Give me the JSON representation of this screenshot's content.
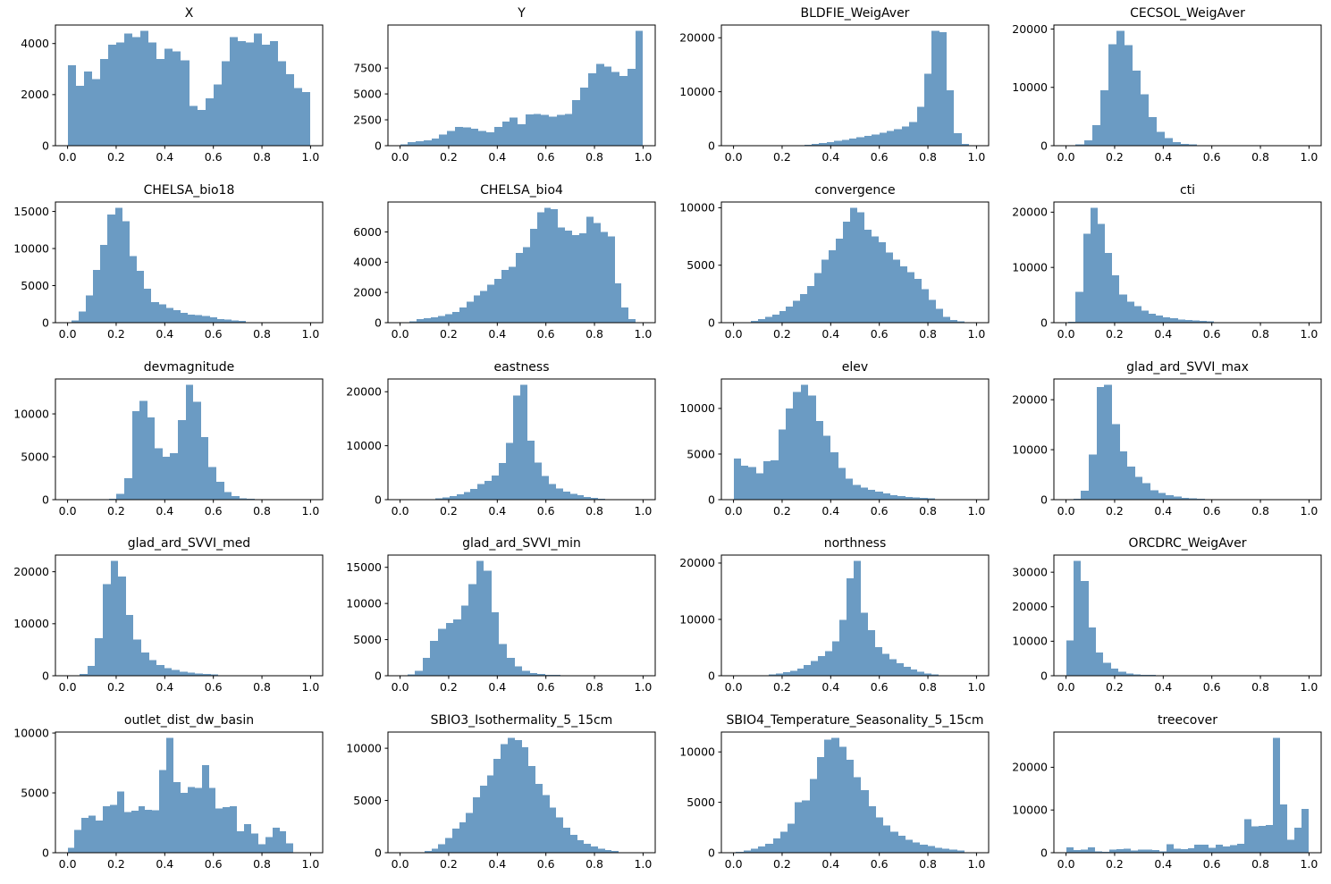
{
  "figure": {
    "rows": 5,
    "cols": 4,
    "background": "#ffffff",
    "bar_color": "#6b9bc3",
    "axis_color": "#000000",
    "text_color": "#000000",
    "grid": false,
    "legend": false,
    "xlim": [
      -0.05,
      1.05
    ],
    "xticks": [
      0.0,
      0.2,
      0.4,
      0.6,
      0.8,
      1.0
    ],
    "xtick_labels": [
      "0.0",
      "0.2",
      "0.4",
      "0.6",
      "0.8",
      "1.0"
    ]
  },
  "chart_data": [
    {
      "type": "bar",
      "subtype": "histogram",
      "title": "X",
      "xlabel": "",
      "ylabel": "",
      "x_range": [
        0.0,
        1.0
      ],
      "yticks": [
        0,
        2000,
        4000
      ],
      "values": [
        3150,
        2350,
        2900,
        2600,
        3400,
        3950,
        4050,
        4400,
        4250,
        4500,
        4050,
        3400,
        3800,
        3700,
        3350,
        1550,
        1400,
        1850,
        2400,
        3300,
        4250,
        4100,
        4050,
        4400,
        3950,
        4100,
        3300,
        2800,
        2250,
        2100
      ]
    },
    {
      "type": "bar",
      "subtype": "histogram",
      "title": "Y",
      "xlabel": "",
      "ylabel": "",
      "x_range": [
        0.0,
        1.0
      ],
      "yticks": [
        0,
        2500,
        5000,
        7500
      ],
      "values": [
        130,
        330,
        420,
        500,
        710,
        1080,
        1430,
        1800,
        1780,
        1660,
        1430,
        1290,
        1800,
        2350,
        2730,
        2070,
        3020,
        3080,
        2960,
        2790,
        2960,
        3080,
        4400,
        5590,
        6980,
        7880,
        7650,
        7130,
        6720,
        7410,
        11100
      ]
    },
    {
      "type": "bar",
      "subtype": "histogram",
      "title": "BLDFIE_WeigAver",
      "xlabel": "",
      "ylabel": "",
      "x_range": [
        0.26,
        0.97
      ],
      "yticks": [
        0,
        10000,
        20000
      ],
      "values": [
        100,
        200,
        350,
        500,
        700,
        900,
        1100,
        1300,
        1600,
        1800,
        2100,
        2400,
        2700,
        3100,
        3600,
        4400,
        7200,
        13300,
        21300,
        21000,
        10300,
        2300,
        300
      ]
    },
    {
      "type": "bar",
      "subtype": "histogram",
      "title": "CECSOL_WeigAver",
      "xlabel": "",
      "ylabel": "",
      "x_range": [
        0.04,
        0.54
      ],
      "yticks": [
        0,
        10000,
        20000
      ],
      "values": [
        200,
        900,
        3500,
        9500,
        17400,
        19700,
        17200,
        12900,
        8800,
        4900,
        2400,
        1300,
        600,
        300,
        200
      ]
    },
    {
      "type": "bar",
      "subtype": "histogram",
      "title": "CHELSA_bio18",
      "xlabel": "",
      "ylabel": "",
      "x_range": [
        0.015,
        0.735
      ],
      "yticks": [
        0,
        5000,
        10000,
        15000
      ],
      "values": [
        300,
        1500,
        3700,
        7100,
        10500,
        14600,
        15500,
        13700,
        9000,
        7000,
        4600,
        2800,
        2500,
        2000,
        1700,
        1300,
        1100,
        1000,
        900,
        700,
        500,
        400,
        300,
        250
      ]
    },
    {
      "type": "bar",
      "subtype": "histogram",
      "title": "CHELSA_bio4",
      "xlabel": "",
      "ylabel": "",
      "x_range": [
        0.04,
        0.97
      ],
      "yticks": [
        0,
        2000,
        4000,
        6000
      ],
      "values": [
        100,
        250,
        300,
        350,
        450,
        550,
        700,
        1000,
        1400,
        1800,
        2100,
        2500,
        2900,
        3500,
        3700,
        4600,
        5000,
        6200,
        7300,
        7600,
        7500,
        6300,
        6100,
        5800,
        5900,
        7000,
        6600,
        6000,
        5700,
        2600,
        1000,
        250
      ]
    },
    {
      "type": "bar",
      "subtype": "histogram",
      "title": "convergence",
      "xlabel": "",
      "ylabel": "",
      "x_range": [
        0.07,
        0.95
      ],
      "yticks": [
        0,
        5000,
        10000
      ],
      "values": [
        150,
        300,
        500,
        700,
        1000,
        1400,
        1900,
        2500,
        3200,
        4300,
        5500,
        6300,
        7300,
        8800,
        10000,
        9600,
        8100,
        7500,
        7000,
        6100,
        5500,
        4900,
        4400,
        3800,
        2900,
        2000,
        1200,
        500,
        250,
        100
      ]
    },
    {
      "type": "bar",
      "subtype": "histogram",
      "title": "cti",
      "xlabel": "",
      "ylabel": "",
      "x_range": [
        0.01,
        0.61
      ],
      "yticks": [
        0,
        10000,
        20000
      ],
      "values": [
        200,
        5600,
        16100,
        20800,
        17900,
        12600,
        8600,
        5100,
        3800,
        3000,
        2200,
        1600,
        1300,
        1000,
        800,
        600,
        500,
        400,
        300,
        250
      ]
    },
    {
      "type": "bar",
      "subtype": "histogram",
      "title": "devmagnitude",
      "xlabel": "",
      "ylabel": "",
      "x_range": [
        0.17,
        0.77
      ],
      "yticks": [
        0,
        5000,
        10000
      ],
      "values": [
        100,
        700,
        2500,
        10300,
        11500,
        9600,
        6000,
        5000,
        5400,
        9300,
        13400,
        11400,
        7300,
        3800,
        2100,
        900,
        400,
        150,
        100
      ]
    },
    {
      "type": "bar",
      "subtype": "histogram",
      "title": "eastness",
      "xlabel": "",
      "ylabel": "",
      "x_range": [
        0.115,
        0.845
      ],
      "yticks": [
        0,
        10000,
        20000
      ],
      "values": [
        100,
        250,
        450,
        700,
        1000,
        1400,
        2000,
        2900,
        3500,
        4500,
        6800,
        10500,
        19300,
        21300,
        10900,
        6900,
        4400,
        2900,
        2100,
        1500,
        1100,
        800,
        500,
        300,
        200
      ]
    },
    {
      "type": "bar",
      "subtype": "histogram",
      "title": "elev",
      "xlabel": "",
      "ylabel": "",
      "x_range": [
        0.0,
        0.83
      ],
      "yticks": [
        0,
        5000,
        10000
      ],
      "values": [
        4500,
        3700,
        3600,
        2900,
        4200,
        4300,
        7700,
        10000,
        11800,
        12600,
        11400,
        8600,
        7000,
        5200,
        3500,
        2300,
        1600,
        1300,
        1100,
        900,
        700,
        500,
        400,
        300,
        250,
        200,
        150
      ]
    },
    {
      "type": "bar",
      "subtype": "histogram",
      "title": "glad_ard_SVVI_max",
      "xlabel": "",
      "ylabel": "",
      "x_range": [
        0.03,
        0.57
      ],
      "yticks": [
        0,
        10000,
        20000
      ],
      "values": [
        200,
        1800,
        9000,
        22500,
        23000,
        15100,
        9700,
        6600,
        4600,
        3300,
        1900,
        1300,
        900,
        600,
        400,
        250,
        150
      ]
    },
    {
      "type": "bar",
      "subtype": "histogram",
      "title": "glad_ard_SVVI_med",
      "xlabel": "",
      "ylabel": "",
      "x_range": [
        0.05,
        0.62
      ],
      "yticks": [
        0,
        10000,
        20000
      ],
      "values": [
        300,
        1900,
        7200,
        17600,
        22100,
        19100,
        11700,
        7000,
        4500,
        3000,
        2100,
        1500,
        1100,
        800,
        600,
        450,
        350,
        250
      ]
    },
    {
      "type": "bar",
      "subtype": "histogram",
      "title": "glad_ard_SVVI_min",
      "xlabel": "",
      "ylabel": "",
      "x_range": [
        0.03,
        0.66
      ],
      "yticks": [
        0,
        5000,
        10000,
        15000
      ],
      "values": [
        200,
        700,
        2500,
        4800,
        6500,
        7300,
        7800,
        9700,
        12700,
        15900,
        14500,
        8800,
        4400,
        2500,
        1300,
        700,
        350,
        250,
        150,
        100
      ]
    },
    {
      "type": "bar",
      "subtype": "histogram",
      "title": "northness",
      "xlabel": "",
      "ylabel": "",
      "x_range": [
        0.115,
        0.845
      ],
      "yticks": [
        0,
        10000,
        20000
      ],
      "values": [
        100,
        250,
        400,
        600,
        900,
        1300,
        1900,
        2600,
        3500,
        4400,
        6100,
        9900,
        17300,
        20400,
        11200,
        8100,
        5100,
        3900,
        2900,
        2200,
        1600,
        1100,
        700,
        400,
        200
      ]
    },
    {
      "type": "bar",
      "subtype": "histogram",
      "title": "ORCDRC_WeigAver",
      "xlabel": "",
      "ylabel": "",
      "x_range": [
        0.0,
        0.37
      ],
      "yticks": [
        0,
        10000,
        20000,
        30000
      ],
      "values": [
        10200,
        33300,
        27400,
        14000,
        6700,
        3700,
        2100,
        1200,
        700,
        450,
        300,
        250
      ]
    },
    {
      "type": "bar",
      "subtype": "histogram",
      "title": "outlet_dist_dw_basin",
      "xlabel": "",
      "ylabel": "",
      "x_range": [
        0.0,
        0.93
      ],
      "yticks": [
        0,
        5000,
        10000
      ],
      "values": [
        400,
        1900,
        2900,
        3100,
        2700,
        3900,
        4000,
        5100,
        3400,
        3500,
        3900,
        3600,
        3550,
        6900,
        9600,
        5900,
        5000,
        5500,
        5400,
        7300,
        5400,
        3700,
        3800,
        3900,
        1800,
        2400,
        1600,
        700,
        1300,
        2100,
        1800,
        800
      ]
    },
    {
      "type": "bar",
      "subtype": "histogram",
      "title": "SBIO3_Isothermality_5_15cm",
      "xlabel": "",
      "ylabel": "",
      "x_range": [
        0.1,
        0.9
      ],
      "yticks": [
        0,
        5000,
        10000
      ],
      "values": [
        150,
        400,
        800,
        1400,
        2300,
        2900,
        3800,
        5300,
        6400,
        7400,
        9000,
        10400,
        11000,
        10800,
        10100,
        8300,
        6600,
        5500,
        4300,
        3400,
        2400,
        1700,
        1200,
        850,
        600,
        400,
        250,
        150
      ]
    },
    {
      "type": "bar",
      "subtype": "histogram",
      "title": "SBIO4_Temperature_Seasonality_5_15cm",
      "xlabel": "",
      "ylabel": "",
      "x_range": [
        0.01,
        0.95
      ],
      "yticks": [
        0,
        5000,
        10000
      ],
      "values": [
        100,
        200,
        400,
        600,
        900,
        1400,
        2100,
        2900,
        5000,
        5200,
        7300,
        9500,
        11200,
        11400,
        10500,
        9200,
        7500,
        6200,
        4600,
        3500,
        2700,
        2100,
        1700,
        1300,
        1000,
        800,
        650,
        500,
        400,
        300,
        200
      ]
    },
    {
      "type": "bar",
      "subtype": "histogram",
      "title": "treecover",
      "xlabel": "",
      "ylabel": "",
      "x_range": [
        0.0,
        1.0
      ],
      "yticks": [
        0,
        10000,
        20000
      ],
      "values": [
        1300,
        600,
        700,
        1300,
        300,
        200,
        700,
        800,
        900,
        500,
        700,
        700,
        600,
        300,
        2000,
        900,
        800,
        1000,
        1900,
        1900,
        1200,
        1900,
        1500,
        1800,
        2100,
        7800,
        6200,
        6300,
        6500,
        26900,
        11300,
        3000,
        5900,
        10300
      ]
    }
  ]
}
